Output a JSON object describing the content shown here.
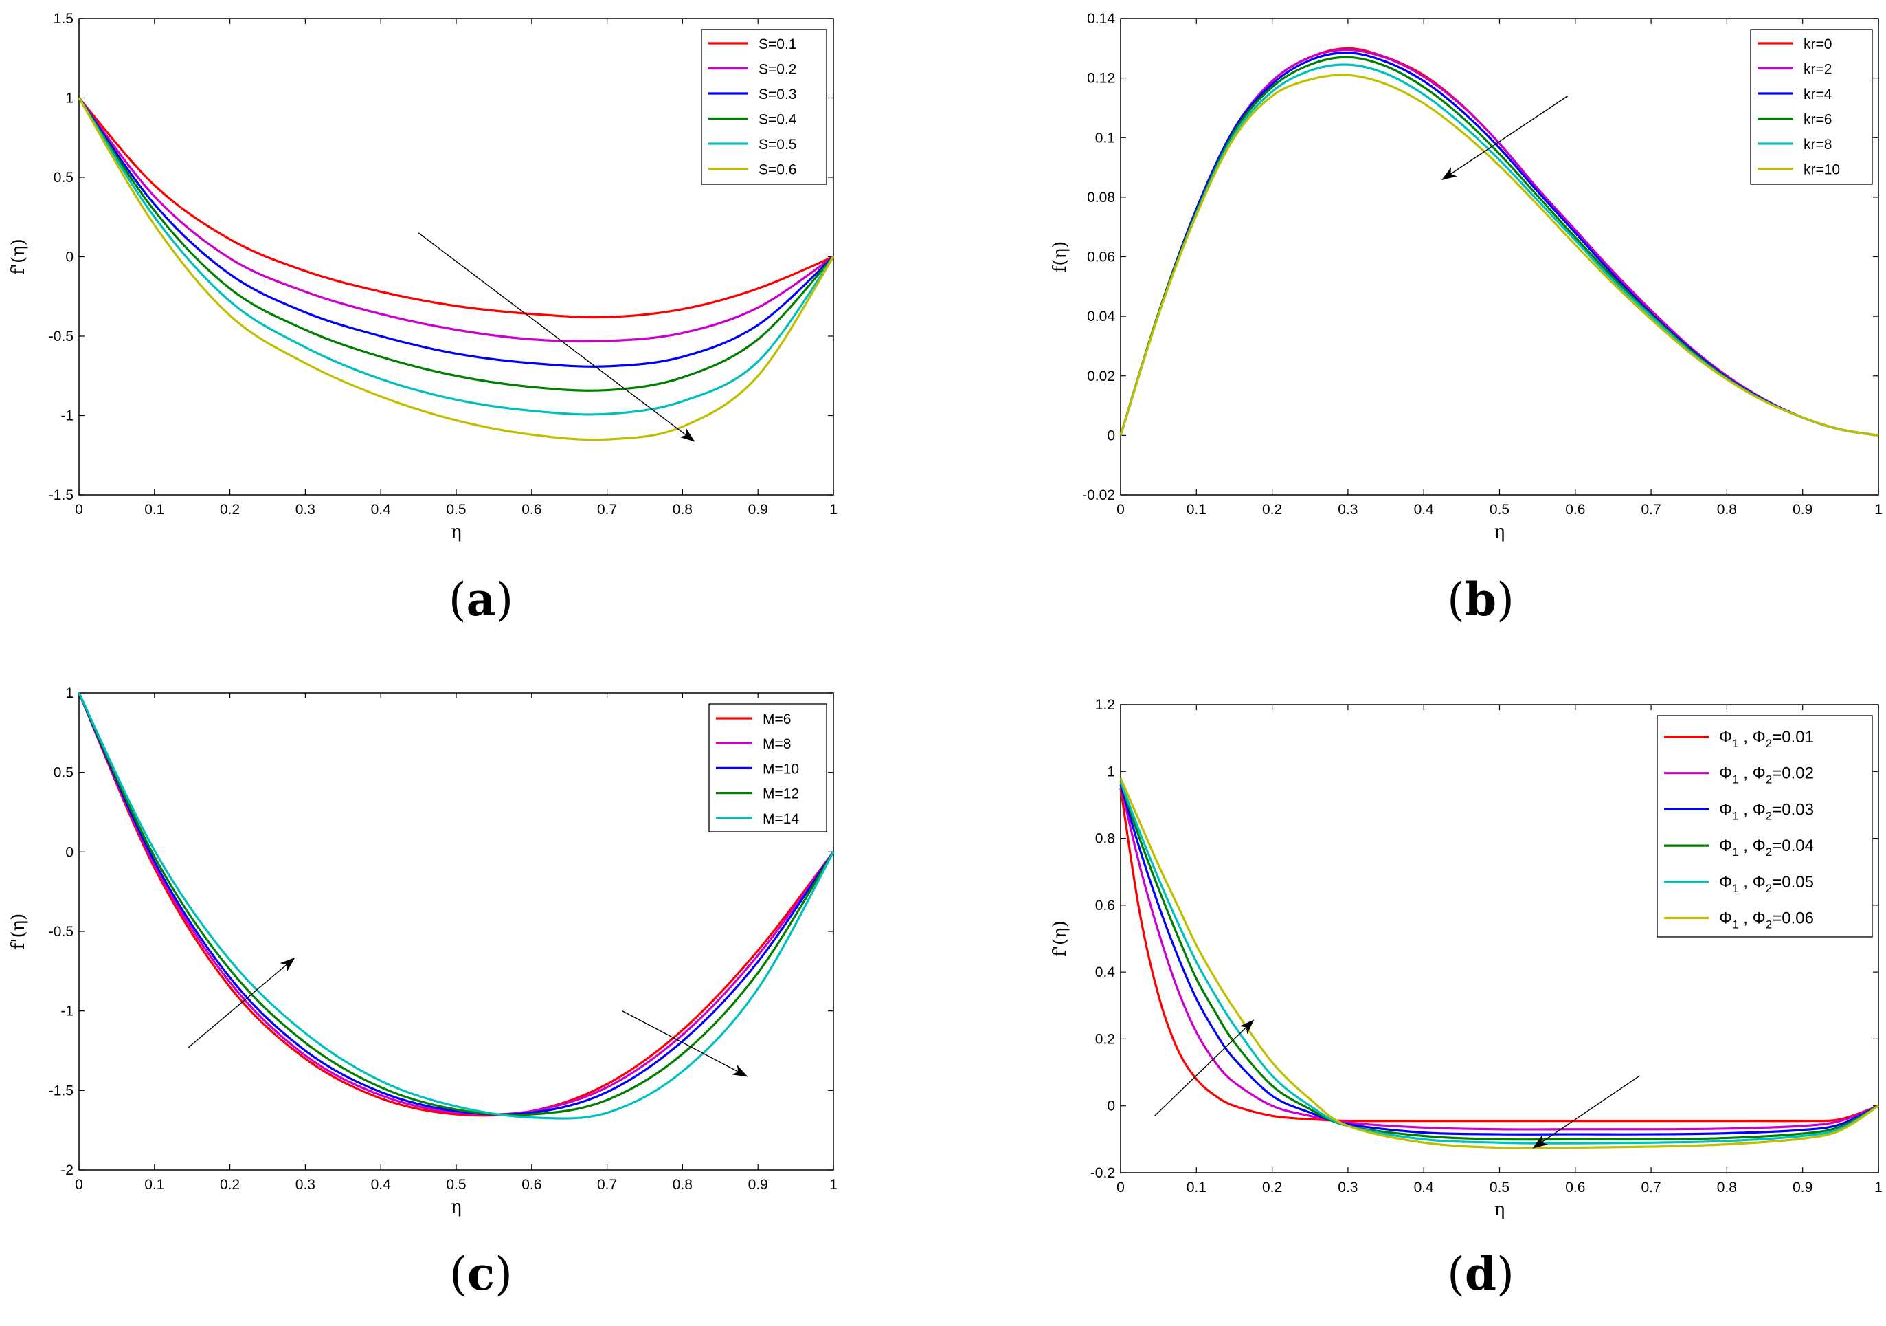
{
  "chart_data": [
    {
      "panel": "(a)",
      "type": "line",
      "xlabel": "η",
      "ylabel": "f'(η)",
      "xlim": [
        0,
        1
      ],
      "ylim": [
        -1.5,
        1.5
      ],
      "xticks": [
        0,
        0.1,
        0.2,
        0.3,
        0.4,
        0.5,
        0.6,
        0.7,
        0.8,
        0.9,
        1
      ],
      "yticks": [
        -1.5,
        -1,
        -0.5,
        0,
        0.5,
        1,
        1.5
      ],
      "xtick_labels": [
        "0",
        "0.1",
        "0.2",
        "0.3",
        "0.4",
        "0.5",
        "0.6",
        "0.7",
        "0.8",
        "0.9",
        "1"
      ],
      "ytick_labels": [
        "-1.5",
        "-1",
        "-0.5",
        "0",
        "0.5",
        "1",
        "1.5"
      ],
      "legend_position": "top-right",
      "x": [
        0,
        0.1,
        0.2,
        0.3,
        0.4,
        0.5,
        0.6,
        0.7,
        0.8,
        0.9,
        1
      ],
      "series": [
        {
          "name": "S=0.1",
          "color": "#ff0000",
          "values": [
            1,
            0.45,
            0.11,
            -0.09,
            -0.22,
            -0.31,
            -0.36,
            -0.38,
            -0.33,
            -0.2,
            0
          ]
        },
        {
          "name": "S=0.2",
          "color": "#cc00cc",
          "values": [
            1,
            0.38,
            -0.01,
            -0.22,
            -0.36,
            -0.46,
            -0.52,
            -0.53,
            -0.48,
            -0.32,
            0
          ]
        },
        {
          "name": "S=0.3",
          "color": "#0000ff",
          "values": [
            1,
            0.33,
            -0.11,
            -0.35,
            -0.5,
            -0.61,
            -0.67,
            -0.69,
            -0.63,
            -0.43,
            0
          ]
        },
        {
          "name": "S=0.4",
          "color": "#007f00",
          "values": [
            1,
            0.29,
            -0.2,
            -0.46,
            -0.63,
            -0.75,
            -0.82,
            -0.84,
            -0.76,
            -0.52,
            0
          ]
        },
        {
          "name": "S=0.5",
          "color": "#00bfbf",
          "values": [
            1,
            0.25,
            -0.28,
            -0.57,
            -0.77,
            -0.9,
            -0.97,
            -0.99,
            -0.91,
            -0.66,
            0
          ]
        },
        {
          "name": "S=0.6",
          "color": "#bfbf00",
          "values": [
            1,
            0.2,
            -0.37,
            -0.67,
            -0.88,
            -1.03,
            -1.12,
            -1.15,
            -1.07,
            -0.75,
            0
          ]
        }
      ],
      "caption": {
        "open": "(",
        "letter": "a",
        "close": ")"
      }
    },
    {
      "panel": "(b)",
      "type": "line",
      "xlabel": "η",
      "ylabel": "f(η)",
      "xlim": [
        0,
        1
      ],
      "ylim": [
        -0.02,
        0.14
      ],
      "xticks": [
        0,
        0.1,
        0.2,
        0.3,
        0.4,
        0.5,
        0.6,
        0.7,
        0.8,
        0.9,
        1
      ],
      "yticks": [
        -0.02,
        0,
        0.02,
        0.04,
        0.06,
        0.08,
        0.1,
        0.12,
        0.14
      ],
      "xtick_labels": [
        "0",
        "0.1",
        "0.2",
        "0.3",
        "0.4",
        "0.5",
        "0.6",
        "0.7",
        "0.8",
        "0.9",
        "1"
      ],
      "ytick_labels": [
        "-0.02",
        "0",
        "0.02",
        "0.04",
        "0.06",
        "0.08",
        "0.1",
        "0.12",
        "0.14"
      ],
      "legend_position": "top-right",
      "x": [
        0,
        0.05,
        0.1,
        0.15,
        0.2,
        0.25,
        0.3,
        0.35,
        0.4,
        0.45,
        0.5,
        0.55,
        0.6,
        0.65,
        0.7,
        0.75,
        0.8,
        0.85,
        0.9,
        0.95,
        1
      ],
      "series": [
        {
          "name": "kr=0",
          "color": "#ff0000",
          "values": [
            0,
            0.041,
            0.076,
            0.103,
            0.119,
            0.127,
            0.13,
            0.127,
            0.121,
            0.111,
            0.098,
            0.083,
            0.069,
            0.055,
            0.042,
            0.03,
            0.02,
            0.012,
            0.006,
            0.002,
            0
          ]
        },
        {
          "name": "kr=2",
          "color": "#cc00cc",
          "values": [
            0,
            0.041,
            0.076,
            0.103,
            0.119,
            0.127,
            0.1295,
            0.1268,
            0.1205,
            0.1108,
            0.098,
            0.083,
            0.069,
            0.055,
            0.042,
            0.03,
            0.02,
            0.012,
            0.006,
            0.002,
            0
          ]
        },
        {
          "name": "kr=4",
          "color": "#0000ff",
          "values": [
            0,
            0.041,
            0.076,
            0.103,
            0.118,
            0.126,
            0.1285,
            0.1255,
            0.119,
            0.109,
            0.0965,
            0.082,
            0.068,
            0.054,
            0.041,
            0.0295,
            0.0195,
            0.0118,
            0.006,
            0.002,
            0
          ]
        },
        {
          "name": "kr=6",
          "color": "#007f00",
          "values": [
            0,
            0.041,
            0.075,
            0.102,
            0.117,
            0.1245,
            0.127,
            0.124,
            0.117,
            0.107,
            0.0945,
            0.0805,
            0.0665,
            0.053,
            0.0405,
            0.029,
            0.0192,
            0.0116,
            0.006,
            0.002,
            0
          ]
        },
        {
          "name": "kr=8",
          "color": "#00bfbf",
          "values": [
            0,
            0.0405,
            0.0745,
            0.101,
            0.1155,
            0.1225,
            0.1245,
            0.1215,
            0.1145,
            0.1045,
            0.0925,
            0.079,
            0.0655,
            0.052,
            0.04,
            0.0285,
            0.019,
            0.0115,
            0.006,
            0.002,
            0
          ]
        },
        {
          "name": "kr=10",
          "color": "#bfbf00",
          "values": [
            0,
            0.0405,
            0.074,
            0.1,
            0.114,
            0.1195,
            0.121,
            0.118,
            0.1115,
            0.102,
            0.0905,
            0.0775,
            0.064,
            0.051,
            0.039,
            0.028,
            0.0188,
            0.0114,
            0.006,
            0.002,
            0
          ]
        }
      ],
      "caption": {
        "open": "(",
        "letter": "b",
        "close": ")"
      }
    },
    {
      "panel": "(c)",
      "type": "line",
      "xlabel": "η",
      "ylabel": "f'(η)",
      "xlim": [
        0,
        1
      ],
      "ylim": [
        -2,
        1
      ],
      "xticks": [
        0,
        0.1,
        0.2,
        0.3,
        0.4,
        0.5,
        0.6,
        0.7,
        0.8,
        0.9,
        1
      ],
      "yticks": [
        -2,
        -1.5,
        -1,
        -0.5,
        0,
        0.5,
        1
      ],
      "xtick_labels": [
        "0",
        "0.1",
        "0.2",
        "0.3",
        "0.4",
        "0.5",
        "0.6",
        "0.7",
        "0.8",
        "0.9",
        "1"
      ],
      "ytick_labels": [
        "-2",
        "-1.5",
        "-1",
        "-0.5",
        "0",
        "0.5",
        "1"
      ],
      "legend_position": "top-right",
      "x": [
        0,
        0.1,
        0.2,
        0.3,
        0.4,
        0.5,
        0.6,
        0.7,
        0.8,
        0.9,
        1
      ],
      "series": [
        {
          "name": "M=6",
          "color": "#ff0000",
          "values": [
            1,
            -0.1,
            -0.85,
            -1.3,
            -1.55,
            -1.65,
            -1.63,
            -1.46,
            -1.12,
            -0.62,
            0
          ]
        },
        {
          "name": "M=8",
          "color": "#cc00cc",
          "values": [
            1,
            -0.08,
            -0.82,
            -1.28,
            -1.53,
            -1.64,
            -1.63,
            -1.48,
            -1.15,
            -0.65,
            0
          ]
        },
        {
          "name": "M=10",
          "color": "#0000ff",
          "values": [
            1,
            -0.06,
            -0.79,
            -1.25,
            -1.51,
            -1.63,
            -1.64,
            -1.51,
            -1.19,
            -0.69,
            0
          ]
        },
        {
          "name": "M=12",
          "color": "#007f00",
          "values": [
            1,
            -0.03,
            -0.74,
            -1.2,
            -1.48,
            -1.62,
            -1.65,
            -1.56,
            -1.27,
            -0.76,
            0
          ]
        },
        {
          "name": "M=14",
          "color": "#00bfbf",
          "values": [
            1,
            0.01,
            -0.68,
            -1.14,
            -1.44,
            -1.6,
            -1.67,
            -1.64,
            -1.38,
            -0.86,
            0
          ]
        }
      ],
      "caption": {
        "open": "(",
        "letter": "c",
        "close": ")"
      }
    },
    {
      "panel": "(d)",
      "type": "line",
      "xlabel": "η",
      "ylabel": "f'(η)",
      "xlim": [
        0,
        1
      ],
      "ylim": [
        -0.2,
        1.2
      ],
      "xticks": [
        0,
        0.1,
        0.2,
        0.3,
        0.4,
        0.5,
        0.6,
        0.7,
        0.8,
        0.9,
        1
      ],
      "yticks": [
        -0.2,
        0,
        0.2,
        0.4,
        0.6,
        0.8,
        1,
        1.2
      ],
      "xtick_labels": [
        "0",
        "0.1",
        "0.2",
        "0.3",
        "0.4",
        "0.5",
        "0.6",
        "0.7",
        "0.8",
        "0.9",
        "1"
      ],
      "ytick_labels": [
        "-0.2",
        "0",
        "0.2",
        "0.4",
        "0.6",
        "0.8",
        "1",
        "1.2"
      ],
      "legend_position": "top-right",
      "x": [
        0,
        0.025,
        0.05,
        0.075,
        0.1,
        0.125,
        0.15,
        0.2,
        0.25,
        0.3,
        0.4,
        0.5,
        0.6,
        0.7,
        0.8,
        0.9,
        0.95,
        1
      ],
      "series": [
        {
          "name": "Φ1 , Φ2=0.01",
          "sym": "Φ",
          "sub1": "1",
          "sub2": "2",
          "val": "=0.01",
          "color": "#ff0000",
          "values": [
            0.95,
            0.58,
            0.33,
            0.17,
            0.08,
            0.03,
            0.0,
            -0.03,
            -0.04,
            -0.045,
            -0.045,
            -0.045,
            -0.045,
            -0.045,
            -0.045,
            -0.045,
            -0.04,
            0
          ]
        },
        {
          "name": "Φ1 , Φ2=0.02",
          "sym": "Φ",
          "sub1": "1",
          "sub2": "2",
          "val": "=0.02",
          "color": "#cc00cc",
          "values": [
            0.96,
            0.72,
            0.52,
            0.35,
            0.22,
            0.13,
            0.07,
            0.0,
            -0.03,
            -0.05,
            -0.065,
            -0.07,
            -0.07,
            -0.07,
            -0.068,
            -0.06,
            -0.045,
            0
          ]
        },
        {
          "name": "Φ1 , Φ2=0.03",
          "sym": "Φ",
          "sub1": "1",
          "sub2": "2",
          "val": "=0.03",
          "color": "#0000ff",
          "values": [
            0.96,
            0.77,
            0.6,
            0.45,
            0.32,
            0.22,
            0.14,
            0.03,
            -0.02,
            -0.055,
            -0.08,
            -0.085,
            -0.085,
            -0.085,
            -0.082,
            -0.072,
            -0.055,
            0
          ]
        },
        {
          "name": "Φ1 , Φ2=0.04",
          "sym": "Φ",
          "sub1": "1",
          "sub2": "2",
          "val": "=0.04",
          "color": "#007f00",
          "values": [
            0.97,
            0.8,
            0.65,
            0.51,
            0.38,
            0.28,
            0.19,
            0.06,
            -0.01,
            -0.06,
            -0.09,
            -0.1,
            -0.1,
            -0.1,
            -0.096,
            -0.083,
            -0.062,
            0
          ]
        },
        {
          "name": "Φ1 , Φ2=0.05",
          "sym": "Φ",
          "sub1": "1",
          "sub2": "2",
          "val": "=0.05",
          "color": "#00bfbf",
          "values": [
            0.97,
            0.82,
            0.68,
            0.55,
            0.43,
            0.33,
            0.24,
            0.09,
            0.0,
            -0.06,
            -0.1,
            -0.11,
            -0.112,
            -0.11,
            -0.105,
            -0.09,
            -0.068,
            0
          ]
        },
        {
          "name": "Φ1 , Φ2=0.06",
          "sym": "Φ",
          "sub1": "1",
          "sub2": "2",
          "val": "=0.06",
          "color": "#bfbf00",
          "values": [
            0.98,
            0.85,
            0.72,
            0.6,
            0.48,
            0.38,
            0.29,
            0.13,
            0.02,
            -0.06,
            -0.11,
            -0.125,
            -0.125,
            -0.122,
            -0.115,
            -0.098,
            -0.073,
            0
          ]
        }
      ],
      "caption": {
        "open": "(",
        "letter": "d",
        "close": ")"
      }
    }
  ]
}
